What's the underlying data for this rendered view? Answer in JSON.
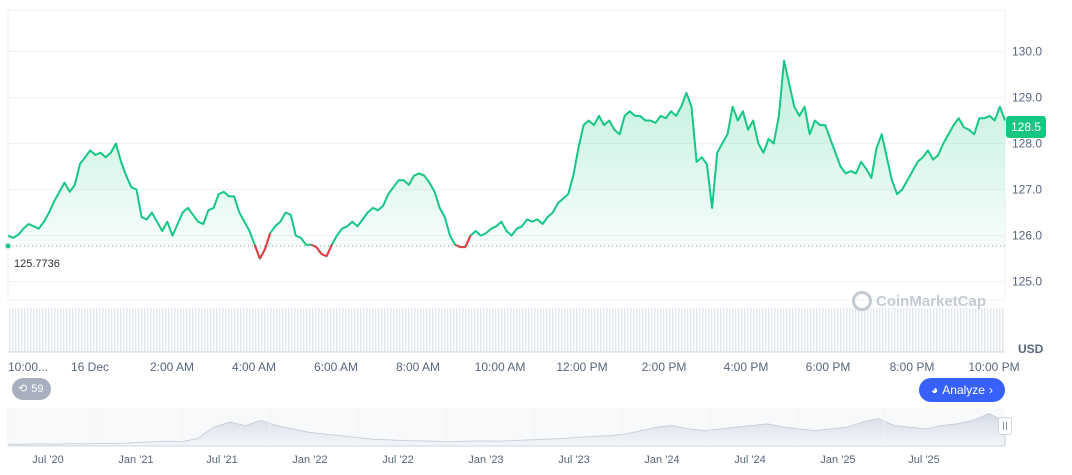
{
  "chart_data": {
    "type": "area",
    "ylim": [
      124.6,
      130.9
    ],
    "y_ticks": [
      "125.0",
      "126.0",
      "127.0",
      "128.0",
      "129.0",
      "130.0"
    ],
    "x_tick_labels": [
      "10:00...",
      "16 Dec",
      "2:00 AM",
      "4:00 AM",
      "6:00 AM",
      "8:00 AM",
      "10:00 AM",
      "12:00 PM",
      "2:00 PM",
      "4:00 PM",
      "6:00 PM",
      "8:00 PM",
      "10:00 PM"
    ],
    "currency": "USD",
    "reference_value": 125.7736,
    "reference_label": "125.7736",
    "last_value_label": "128.5",
    "values": [
      126.0,
      125.95,
      126.02,
      126.15,
      126.25,
      126.2,
      126.15,
      126.3,
      126.5,
      126.75,
      126.95,
      127.15,
      126.95,
      127.1,
      127.55,
      127.7,
      127.85,
      127.75,
      127.8,
      127.7,
      127.8,
      128.0,
      127.6,
      127.3,
      127.05,
      127.0,
      126.4,
      126.35,
      126.5,
      126.3,
      126.1,
      126.3,
      126.0,
      126.25,
      126.5,
      126.6,
      126.45,
      126.3,
      126.25,
      126.55,
      126.6,
      126.9,
      126.95,
      126.85,
      126.85,
      126.5,
      126.3,
      126.1,
      125.8,
      125.5,
      125.7,
      126.05,
      126.2,
      126.3,
      126.5,
      126.45,
      126.0,
      125.95,
      125.8,
      125.8,
      125.75,
      125.6,
      125.55,
      125.8,
      126.0,
      126.15,
      126.2,
      126.3,
      126.2,
      126.35,
      126.5,
      126.6,
      126.55,
      126.65,
      126.9,
      127.05,
      127.2,
      127.2,
      127.1,
      127.3,
      127.35,
      127.3,
      127.15,
      126.95,
      126.6,
      126.4,
      126.0,
      125.8,
      125.75,
      125.75,
      126.0,
      126.1,
      126.0,
      126.05,
      126.15,
      126.2,
      126.3,
      126.1,
      126.0,
      126.15,
      126.2,
      126.35,
      126.3,
      126.35,
      126.25,
      126.4,
      126.5,
      126.7,
      126.8,
      126.9,
      127.3,
      127.9,
      128.4,
      128.5,
      128.4,
      128.6,
      128.4,
      128.5,
      128.3,
      128.2,
      128.6,
      128.7,
      128.6,
      128.6,
      128.5,
      128.5,
      128.45,
      128.6,
      128.55,
      128.7,
      128.6,
      128.8,
      129.1,
      128.8,
      127.6,
      127.7,
      127.55,
      126.6,
      127.8,
      128.0,
      128.2,
      128.8,
      128.5,
      128.7,
      128.3,
      128.5,
      128.0,
      127.8,
      128.1,
      128.0,
      128.6,
      129.8,
      129.3,
      128.8,
      128.6,
      128.8,
      128.2,
      128.5,
      128.4,
      128.4,
      128.1,
      127.8,
      127.5,
      127.35,
      127.4,
      127.35,
      127.6,
      127.45,
      127.25,
      127.9,
      128.2,
      127.7,
      127.2,
      126.9,
      127.0,
      127.2,
      127.4,
      127.6,
      127.7,
      127.85,
      127.65,
      127.75,
      128.0,
      128.2,
      128.4,
      128.55,
      128.35,
      128.3,
      128.2,
      128.55,
      128.55,
      128.6,
      128.5,
      128.8,
      128.5
    ]
  },
  "history": {
    "count": "59"
  },
  "analyze": {
    "label": "Analyze"
  },
  "watermark": {
    "text": "CoinMarketCap"
  },
  "navigator": {
    "x_tick_labels": [
      "Jul '20",
      "Jan '21",
      "Jul '21",
      "Jan '22",
      "Jul '22",
      "Jan '23",
      "Jul '23",
      "Jan '24",
      "Jul '24",
      "Jan '25",
      "Jul '25"
    ]
  },
  "colors": {
    "up": "#16c784",
    "down": "#ea3943",
    "accent": "#3861fb",
    "grid": "#eff2f5"
  }
}
